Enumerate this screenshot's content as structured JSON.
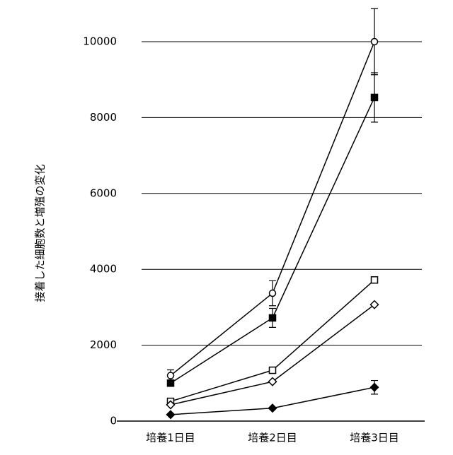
{
  "chart_data": {
    "type": "line",
    "ylabel": "接着した細胞数と増殖の変化",
    "categories": [
      "培養1日目",
      "培養2日目",
      "培養3日目"
    ],
    "ylim": [
      0,
      10000
    ],
    "yticks": [
      0,
      2000,
      4000,
      6000,
      8000,
      10000
    ],
    "grid": true,
    "series": [
      {
        "color": "#000000",
        "marker": "circle",
        "filled": false,
        "values": [
          1200,
          3370,
          10000
        ],
        "errors": [
          150,
          330,
          870
        ]
      },
      {
        "color": "#000000",
        "marker": "square",
        "filled": true,
        "values": [
          1000,
          2720,
          8530
        ],
        "errors": [
          null,
          250,
          650
        ]
      },
      {
        "color": "#000000",
        "marker": "square",
        "filled": false,
        "values": [
          520,
          1340,
          3720
        ],
        "errors": [
          null,
          null,
          null
        ]
      },
      {
        "color": "#000000",
        "marker": "diamond",
        "filled": false,
        "values": [
          430,
          1040,
          3070
        ],
        "errors": [
          null,
          null,
          null
        ]
      },
      {
        "color": "#000000",
        "marker": "diamond",
        "filled": true,
        "values": [
          170,
          340,
          890
        ],
        "errors": [
          null,
          null,
          180
        ]
      }
    ]
  }
}
